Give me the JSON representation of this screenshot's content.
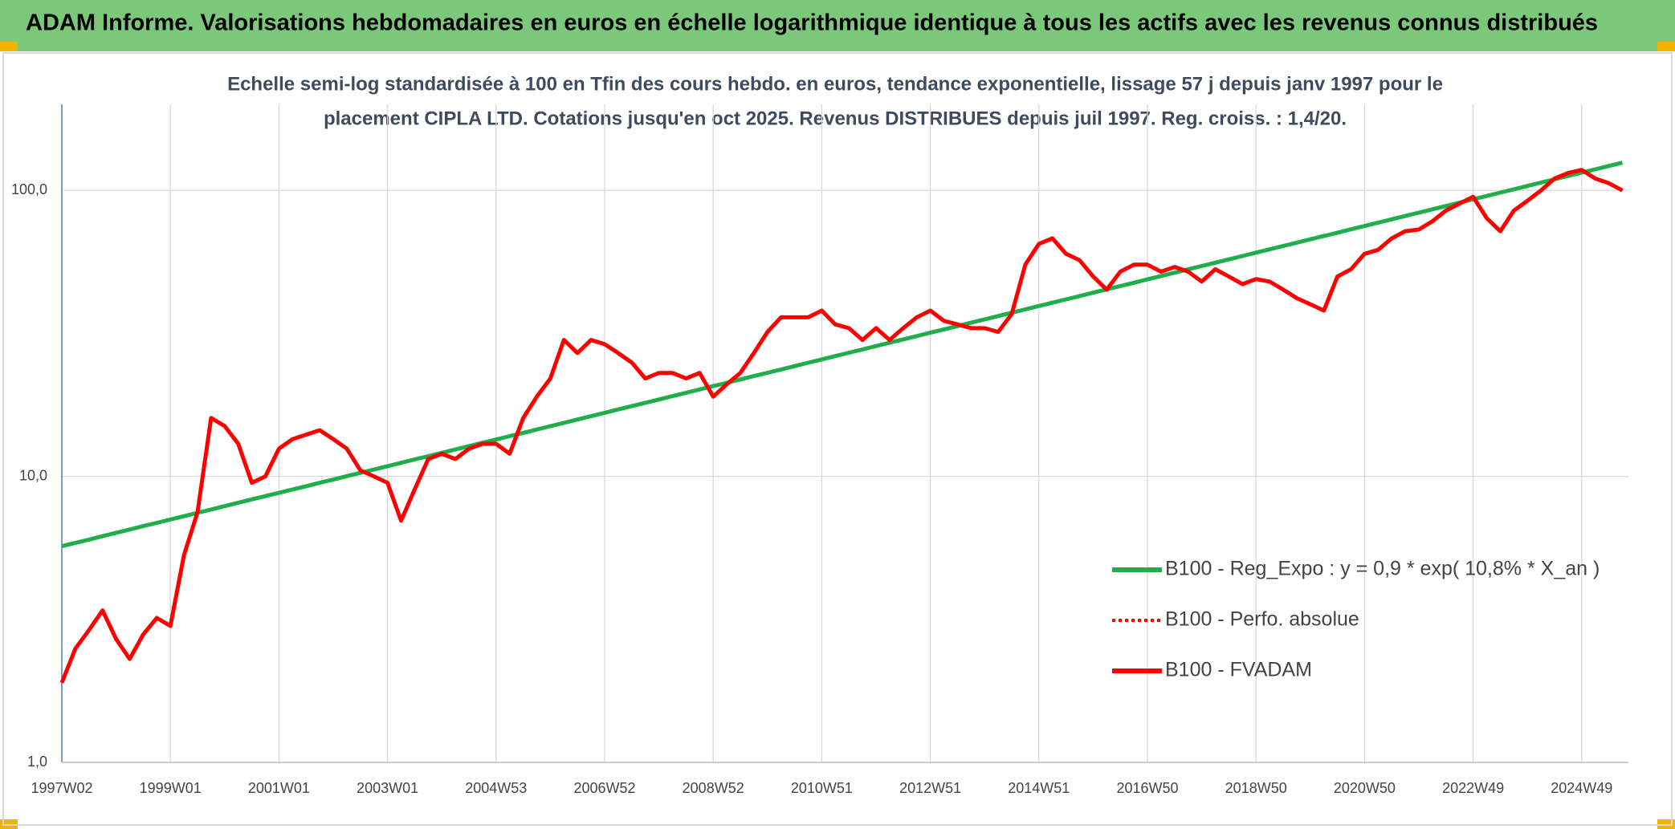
{
  "chart_data": {
    "type": "line",
    "title": "ADAM Informe. Valorisations hebdomadaires en euros en échelle logarithmique identique à tous les actifs avec les revenus connus distribués",
    "subtitle": [
      "Echelle semi-log standardisée à 100 en Tfin des cours hebdo. en euros, tendance exponentielle, lissage 57 j depuis janv 1997 pour le",
      "placement CIPLA LTD. Cotations jusqu'en oct 2025. Revenus DISTRIBUES depuis juil 1997. Reg. croiss. : 1,4/20."
    ],
    "log_scale": true,
    "grid": true,
    "legend": "right",
    "ylim": [
      1,
      200
    ],
    "yticks": [
      {
        "value": 1,
        "label": "1,0"
      },
      {
        "value": 10,
        "label": "10,0"
      },
      {
        "value": 100,
        "label": "100,0"
      }
    ],
    "categories": [
      "1997W02",
      null,
      null,
      null,
      null,
      null,
      null,
      null,
      "1999W01",
      null,
      null,
      null,
      null,
      null,
      null,
      null,
      "2001W01",
      null,
      null,
      null,
      null,
      null,
      null,
      null,
      "2003W01",
      null,
      null,
      null,
      null,
      null,
      null,
      null,
      "2004W53",
      null,
      null,
      null,
      null,
      null,
      null,
      null,
      "2006W52",
      null,
      null,
      null,
      null,
      null,
      null,
      null,
      "2008W52",
      null,
      null,
      null,
      null,
      null,
      null,
      null,
      "2010W51",
      null,
      null,
      null,
      null,
      null,
      null,
      null,
      "2012W51",
      null,
      null,
      null,
      null,
      null,
      null,
      null,
      "2014W51",
      null,
      null,
      null,
      null,
      null,
      null,
      null,
      "2016W50",
      null,
      null,
      null,
      null,
      null,
      null,
      null,
      "2018W50",
      null,
      null,
      null,
      null,
      null,
      null,
      null,
      "2020W50",
      null,
      null,
      null,
      null,
      null,
      null,
      null,
      "2022W49",
      null,
      null,
      null,
      null,
      null,
      null,
      null,
      "2024W49",
      null,
      null,
      null
    ],
    "series": [
      {
        "name": "B100 - Reg_Expo : y = 0,9 * exp( 10,8% *  X_an )",
        "color": "#1fae4b",
        "dash": false,
        "values": [
          5.7,
          5.86,
          6.01,
          6.18,
          6.35,
          6.52,
          6.7,
          6.88,
          7.07,
          7.26,
          7.46,
          7.66,
          7.87,
          8.09,
          8.31,
          8.53,
          8.76,
          9.0,
          9.24,
          9.5,
          9.75,
          10.02,
          10.29,
          10.57,
          10.86,
          11.16,
          11.46,
          11.77,
          12.09,
          12.42,
          12.76,
          13.11,
          13.46,
          13.83,
          14.2,
          14.59,
          14.99,
          15.39,
          15.81,
          16.24,
          16.69,
          17.14,
          17.61,
          18.09,
          18.58,
          19.09,
          19.61,
          20.14,
          20.69,
          21.25,
          21.83,
          22.43,
          23.04,
          23.66,
          24.31,
          24.97,
          25.65,
          26.35,
          27.07,
          27.8,
          28.56,
          29.34,
          30.13,
          30.95,
          31.8,
          32.67,
          33.56,
          34.47,
          35.41,
          36.37,
          37.36,
          38.38,
          39.42,
          40.49,
          41.6,
          42.73,
          43.89,
          45.08,
          46.31,
          47.57,
          48.87,
          50.2,
          51.57,
          52.97,
          54.41,
          55.89,
          57.41,
          58.98,
          60.58,
          62.23,
          63.92,
          65.66,
          67.45,
          69.29,
          71.17,
          73.11,
          75.1,
          77.14,
          79.25,
          81.4,
          83.62,
          85.89,
          88.23,
          90.63,
          93.1,
          95.63,
          98.24,
          100.9,
          103.7,
          106.5,
          109.4,
          112.4,
          115.4,
          118.5,
          121.8,
          125.0
        ]
      },
      {
        "name": "B100 - Perfo. absolue",
        "color": "#ff0000",
        "dash": true,
        "values": [
          1.9,
          2.5,
          2.9,
          3.4,
          2.7,
          2.3,
          2.8,
          3.2,
          3.0,
          5.3,
          7.5,
          16,
          15,
          13,
          9.5,
          10,
          12.5,
          13.5,
          14,
          14.5,
          13.5,
          12.5,
          10.5,
          10,
          9.5,
          7,
          9,
          11.5,
          12,
          11.5,
          12.5,
          13,
          13,
          12,
          16,
          19,
          22,
          30,
          27,
          30,
          29,
          27,
          25,
          22,
          23,
          23,
          22,
          23,
          19,
          21,
          23,
          27,
          32,
          36,
          36,
          36,
          38,
          34,
          33,
          30,
          33,
          30,
          33,
          36,
          38,
          35,
          34,
          33,
          33,
          32,
          37,
          55,
          65,
          68,
          60,
          57,
          50,
          45,
          52,
          55,
          55,
          52,
          54,
          52,
          48,
          53,
          50,
          47,
          49,
          48,
          45,
          42,
          40,
          38,
          50,
          53,
          60,
          62,
          68,
          72,
          73,
          78,
          85,
          90,
          95,
          80,
          72,
          85,
          92,
          100,
          110,
          115,
          118,
          110,
          106,
          100
        ]
      },
      {
        "name": "B100 - FVADAM",
        "color": "#ff0000",
        "dash": false,
        "values": [
          1.9,
          2.5,
          2.9,
          3.4,
          2.7,
          2.3,
          2.8,
          3.2,
          3.0,
          5.3,
          7.5,
          16,
          15,
          13,
          9.5,
          10,
          12.5,
          13.5,
          14,
          14.5,
          13.5,
          12.5,
          10.5,
          10,
          9.5,
          7,
          9,
          11.5,
          12,
          11.5,
          12.5,
          13,
          13,
          12,
          16,
          19,
          22,
          30,
          27,
          30,
          29,
          27,
          25,
          22,
          23,
          23,
          22,
          23,
          19,
          21,
          23,
          27,
          32,
          36,
          36,
          36,
          38,
          34,
          33,
          30,
          33,
          30,
          33,
          36,
          38,
          35,
          34,
          33,
          33,
          32,
          37,
          55,
          65,
          68,
          60,
          57,
          50,
          45,
          52,
          55,
          55,
          52,
          54,
          52,
          48,
          53,
          50,
          47,
          49,
          48,
          45,
          42,
          40,
          38,
          50,
          53,
          60,
          62,
          68,
          72,
          73,
          78,
          85,
          90,
          95,
          80,
          72,
          85,
          92,
          100,
          110,
          115,
          118,
          110,
          106,
          100
        ]
      }
    ]
  }
}
